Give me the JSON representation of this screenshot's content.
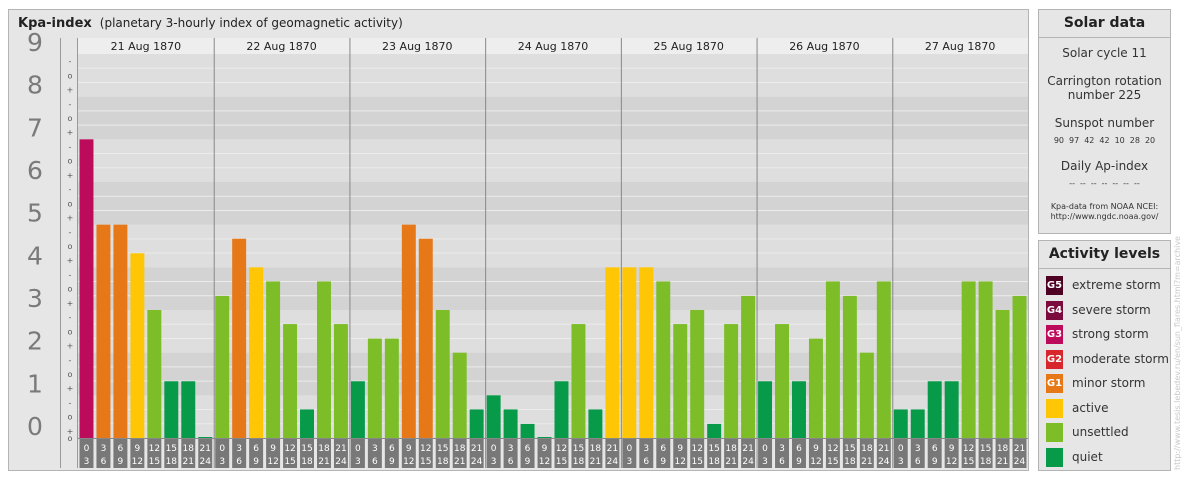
{
  "header": {
    "title": "Kpa-index",
    "subtitle": "(planetary 3-hourly index of geomagnetic activity)"
  },
  "chart_data": {
    "type": "bar",
    "ylim": [
      0,
      9
    ],
    "y_ticks": [
      "0",
      "1",
      "2",
      "3",
      "4",
      "5",
      "6",
      "7",
      "8",
      "9"
    ],
    "sub_ticks": [
      "+",
      "o",
      "-"
    ],
    "days": [
      "21 Aug 1870",
      "22 Aug 1870",
      "23 Aug 1870",
      "24 Aug 1870",
      "25 Aug 1870",
      "26 Aug 1870",
      "27 Aug 1870"
    ],
    "intervals": [
      [
        "0",
        "3"
      ],
      [
        "3",
        "6"
      ],
      [
        "6",
        "9"
      ],
      [
        "9",
        "12"
      ],
      [
        "12",
        "15"
      ],
      [
        "15",
        "18"
      ],
      [
        "18",
        "21"
      ],
      [
        "21",
        "24"
      ]
    ],
    "values": [
      [
        7.0,
        5.0,
        5.0,
        4.33,
        3.0,
        1.33,
        1.33,
        0.0
      ],
      [
        3.33,
        4.67,
        4.0,
        3.67,
        2.67,
        0.67,
        3.67,
        2.67
      ],
      [
        1.33,
        2.33,
        2.33,
        5.0,
        4.67,
        3.0,
        2.0,
        0.67
      ],
      [
        1.0,
        0.67,
        0.33,
        0.0,
        1.33,
        2.67,
        0.67,
        4.0
      ],
      [
        4.0,
        4.0,
        3.67,
        2.67,
        3.0,
        0.33,
        2.67,
        3.33
      ],
      [
        1.33,
        2.67,
        1.33,
        2.33,
        3.67,
        3.33,
        2.0,
        3.67
      ],
      [
        0.67,
        0.67,
        1.33,
        1.33,
        3.67,
        3.67,
        3.0,
        3.33
      ]
    ],
    "level_colors": {
      "quiet": "#079a48",
      "unsettled": "#7cbd28",
      "active": "#fec604",
      "minor": "#e67818",
      "moderate": "#d7272c",
      "strong": "#bd0b5c",
      "severe": "#7a0b3c",
      "extreme": "#4d0224"
    }
  },
  "solar": {
    "title": "Solar data",
    "cycle": "Solar cycle 11",
    "carrington_line1": "Carrington rotation",
    "carrington_line2": "number 225",
    "sunspot_label": "Sunspot number",
    "sunspot_values": [
      "90",
      "97",
      "42",
      "42",
      "10",
      "28",
      "20"
    ],
    "ap_label": "Daily Ap-index",
    "ap_values": [
      "--",
      "--",
      "--",
      "--",
      "--",
      "--",
      "--"
    ],
    "source_line1": "Kpa-data from NOAA NCEI:",
    "source_line2": "http://www.ngdc.noaa.gov/"
  },
  "levels": {
    "title": "Activity levels",
    "items": [
      {
        "badge": "G5",
        "label": "extreme storm",
        "color": "#4d0224"
      },
      {
        "badge": "G4",
        "label": "severe storm",
        "color": "#7a0b3c"
      },
      {
        "badge": "G3",
        "label": "strong storm",
        "color": "#bd0b5c"
      },
      {
        "badge": "G2",
        "label": "moderate storm",
        "color": "#d7272c"
      },
      {
        "badge": "G1",
        "label": "minor storm",
        "color": "#e67818"
      },
      {
        "badge": "",
        "label": "active",
        "color": "#fec604"
      },
      {
        "badge": "",
        "label": "unsettled",
        "color": "#7cbd28"
      },
      {
        "badge": "",
        "label": "quiet",
        "color": "#079a48"
      }
    ]
  },
  "watermark": "http://www.tesis.lebedev.ru/en/sun_flares.html?m=archive"
}
